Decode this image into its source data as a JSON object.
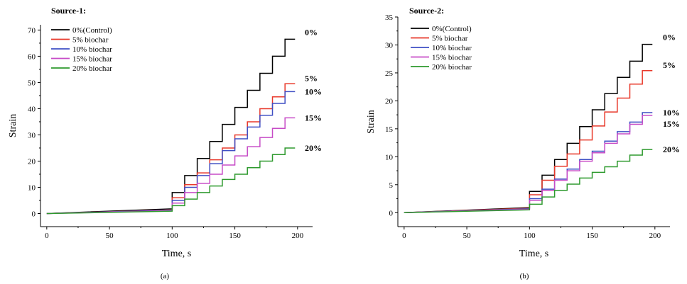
{
  "chart_data": [
    {
      "type": "line",
      "title": "Source-1:",
      "xlabel": "Time, s",
      "ylabel": "Strain",
      "xlim": [
        -5,
        212
      ],
      "ylim": [
        -5,
        72
      ],
      "xticks": [
        0,
        50,
        100,
        150,
        200
      ],
      "yticks": [
        0,
        10,
        20,
        30,
        40,
        50,
        60,
        70
      ],
      "caption": "(a)",
      "legend_position": "top-left",
      "series": [
        {
          "name": "0%(Control)",
          "color": "#000000",
          "end_label": "0%",
          "creep_end": 1.8,
          "steps": [
            8,
            14.5,
            21,
            27.5,
            34,
            40.5,
            47,
            53.5,
            60,
            66.5
          ]
        },
        {
          "name": "5%  biochar",
          "color": "#e8382a",
          "end_label": "5%",
          "creep_end": 1.4,
          "steps": [
            6,
            11,
            15.5,
            20.5,
            25,
            30,
            35,
            40,
            44.5,
            49.5
          ]
        },
        {
          "name": "10% biochar",
          "color": "#3f4fc4",
          "end_label": "10%",
          "creep_end": 1.3,
          "steps": [
            5,
            10,
            14.5,
            19,
            24,
            28.5,
            33,
            37.5,
            42,
            46.5
          ]
        },
        {
          "name": "15% biochar",
          "color": "#c74cc7",
          "end_label": "15%",
          "creep_end": 1.1,
          "steps": [
            4,
            8,
            11.5,
            15,
            18.5,
            22,
            25.5,
            29,
            32.5,
            36.5
          ]
        },
        {
          "name": "20% biochar",
          "color": "#2e9a2e",
          "end_label": "20%",
          "creep_end": 0.9,
          "steps": [
            3,
            5.5,
            8,
            10.5,
            13,
            15,
            17.5,
            20,
            22.5,
            25
          ]
        }
      ]
    },
    {
      "type": "line",
      "title": "Source-2:",
      "xlabel": "Time, s",
      "ylabel": "Strain",
      "xlim": [
        -5,
        212
      ],
      "ylim": [
        -2.5,
        35
      ],
      "xticks": [
        0,
        50,
        100,
        150,
        200
      ],
      "yticks": [
        0,
        5,
        10,
        15,
        20,
        25,
        30,
        35
      ],
      "caption": "(b)",
      "legend_position": "top-left",
      "series": [
        {
          "name": "0%(Control)",
          "color": "#000000",
          "end_label": "0%",
          "creep_end": 0.9,
          "steps": [
            3.8,
            6.7,
            9.5,
            12.4,
            15.4,
            18.4,
            21.3,
            24.2,
            27.1,
            30.1
          ]
        },
        {
          "name": "5% biochar",
          "color": "#e8382a",
          "end_label": "5%",
          "creep_end": 0.8,
          "steps": [
            3.2,
            5.8,
            8.3,
            10.5,
            13,
            15.5,
            18,
            20.5,
            23,
            25.4
          ]
        },
        {
          "name": "10% biochar",
          "color": "#3f4fc4",
          "end_label": "10%",
          "creep_end": 0.7,
          "steps": [
            2.5,
            4.2,
            6,
            7.8,
            9.5,
            11,
            12.8,
            14.5,
            16.2,
            17.9
          ]
        },
        {
          "name": "15% biochar",
          "color": "#c74cc7",
          "end_label": "15%",
          "creep_end": 0.6,
          "steps": [
            2.2,
            4,
            5.8,
            7.5,
            9.2,
            10.7,
            12.4,
            14.1,
            15.8,
            17.4
          ]
        },
        {
          "name": "20% biochar",
          "color": "#2e9a2e",
          "end_label": "20%",
          "creep_end": 0.5,
          "steps": [
            1.5,
            2.8,
            4,
            5.1,
            6.2,
            7.2,
            8.2,
            9.2,
            10.3,
            11.3
          ]
        }
      ]
    }
  ]
}
